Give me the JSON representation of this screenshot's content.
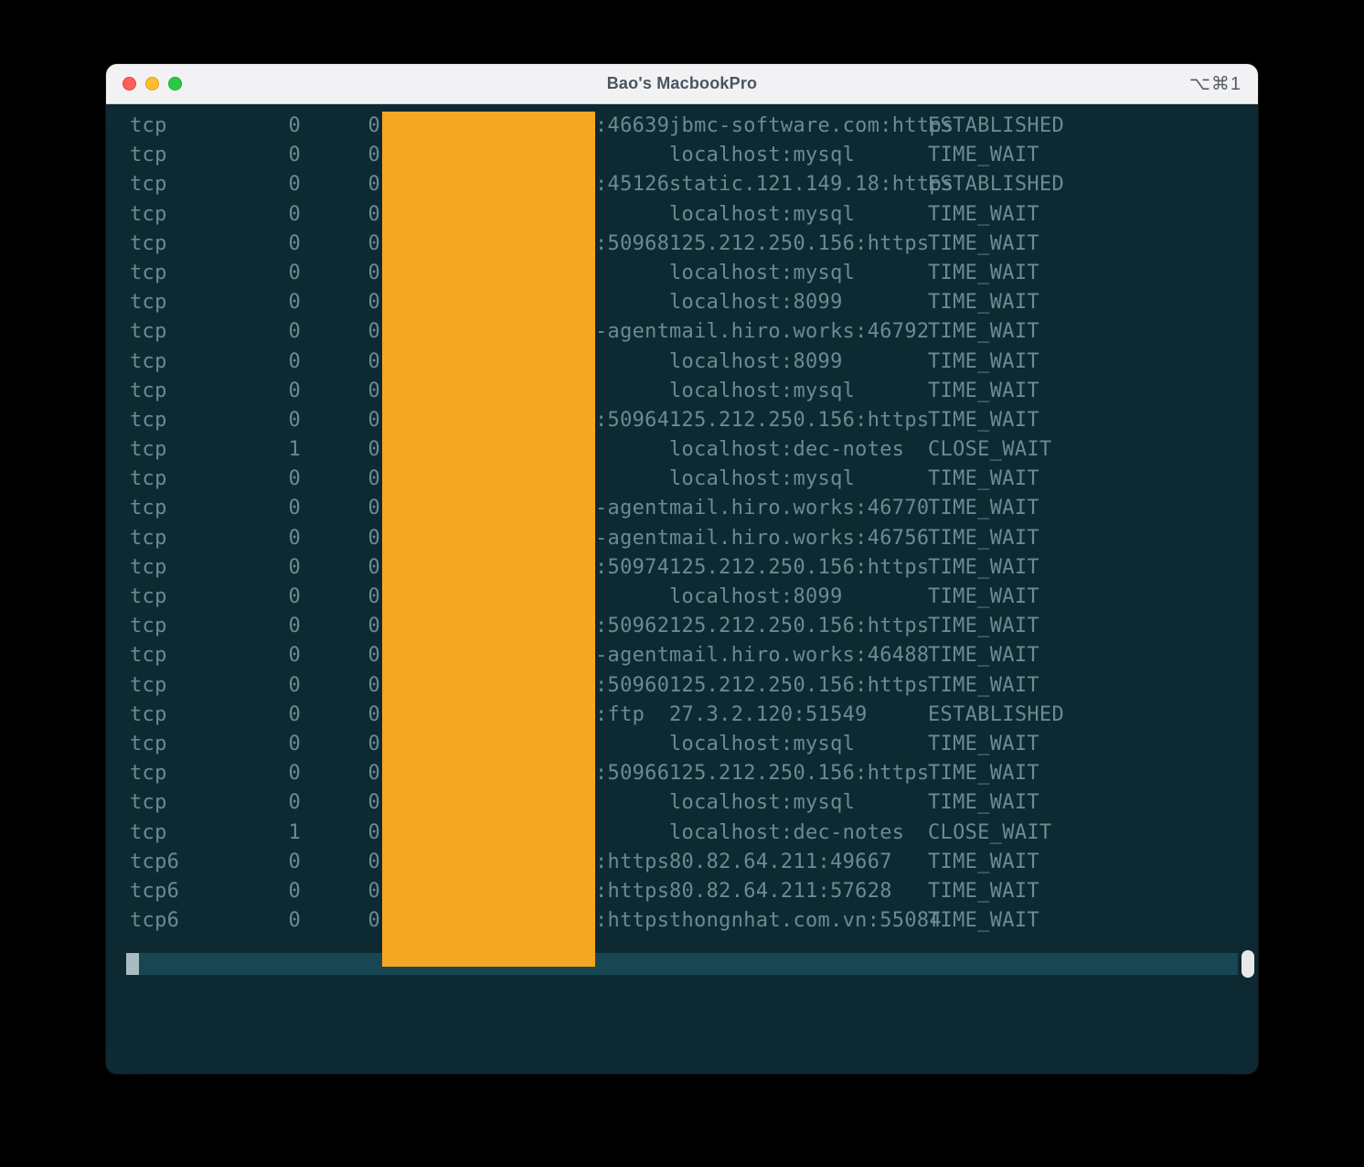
{
  "window": {
    "title": "Bao's MacbookPro",
    "shortcut": "⌥⌘1"
  },
  "colors": {
    "window_bg": "#0d2a32",
    "titlebar_bg": "#f2f2f4",
    "redaction": "#f5a623",
    "text": "#6c8a92",
    "bottom_bar": "#194653",
    "cursor": "#a8bcc2",
    "page_bg": "#000000"
  },
  "columns": [
    "proto",
    "recv_q",
    "send_q",
    "local_suffix",
    "remote",
    "state"
  ],
  "rows": [
    {
      "proto": "tcp",
      "recv_q": "0",
      "send_q": "0",
      "local_suffix": ":46639",
      "remote": "jbmc-software.com:https",
      "state": "ESTABLISHED"
    },
    {
      "proto": "tcp",
      "recv_q": "0",
      "send_q": "0",
      "local_suffix": "",
      "remote": "localhost:mysql",
      "state": "TIME_WAIT"
    },
    {
      "proto": "tcp",
      "recv_q": "0",
      "send_q": "0",
      "local_suffix": ":45126",
      "remote": "static.121.149.18:https",
      "state": "ESTABLISHED"
    },
    {
      "proto": "tcp",
      "recv_q": "0",
      "send_q": "0",
      "local_suffix": "",
      "remote": "localhost:mysql",
      "state": "TIME_WAIT"
    },
    {
      "proto": "tcp",
      "recv_q": "0",
      "send_q": "0",
      "local_suffix": ":50968",
      "remote": "125.212.250.156:https",
      "state": "TIME_WAIT"
    },
    {
      "proto": "tcp",
      "recv_q": "0",
      "send_q": "0",
      "local_suffix": "",
      "remote": "localhost:mysql",
      "state": "TIME_WAIT"
    },
    {
      "proto": "tcp",
      "recv_q": "0",
      "send_q": "0",
      "local_suffix": "",
      "remote": "localhost:8099",
      "state": "TIME_WAIT"
    },
    {
      "proto": "tcp",
      "recv_q": "0",
      "send_q": "0",
      "local_suffix": "-agent",
      "remote": "mail.hiro.works:46792",
      "state": "TIME_WAIT"
    },
    {
      "proto": "tcp",
      "recv_q": "0",
      "send_q": "0",
      "local_suffix": "",
      "remote": "localhost:8099",
      "state": "TIME_WAIT"
    },
    {
      "proto": "tcp",
      "recv_q": "0",
      "send_q": "0",
      "local_suffix": "",
      "remote": "localhost:mysql",
      "state": "TIME_WAIT"
    },
    {
      "proto": "tcp",
      "recv_q": "0",
      "send_q": "0",
      "local_suffix": ":50964",
      "remote": "125.212.250.156:https",
      "state": "TIME_WAIT"
    },
    {
      "proto": "tcp",
      "recv_q": "1",
      "send_q": "0",
      "local_suffix": "",
      "remote": "localhost:dec-notes",
      "state": "CLOSE_WAIT"
    },
    {
      "proto": "tcp",
      "recv_q": "0",
      "send_q": "0",
      "local_suffix": "",
      "remote": "localhost:mysql",
      "state": "TIME_WAIT"
    },
    {
      "proto": "tcp",
      "recv_q": "0",
      "send_q": "0",
      "local_suffix": "-agent",
      "remote": "mail.hiro.works:46770",
      "state": "TIME_WAIT"
    },
    {
      "proto": "tcp",
      "recv_q": "0",
      "send_q": "0",
      "local_suffix": "-agent",
      "remote": "mail.hiro.works:46756",
      "state": "TIME_WAIT"
    },
    {
      "proto": "tcp",
      "recv_q": "0",
      "send_q": "0",
      "local_suffix": ":50974",
      "remote": "125.212.250.156:https",
      "state": "TIME_WAIT"
    },
    {
      "proto": "tcp",
      "recv_q": "0",
      "send_q": "0",
      "local_suffix": "",
      "remote": "localhost:8099",
      "state": "TIME_WAIT"
    },
    {
      "proto": "tcp",
      "recv_q": "0",
      "send_q": "0",
      "local_suffix": ":50962",
      "remote": "125.212.250.156:https",
      "state": "TIME_WAIT"
    },
    {
      "proto": "tcp",
      "recv_q": "0",
      "send_q": "0",
      "local_suffix": "-agent",
      "remote": "mail.hiro.works:46488",
      "state": "TIME_WAIT"
    },
    {
      "proto": "tcp",
      "recv_q": "0",
      "send_q": "0",
      "local_suffix": ":50960",
      "remote": "125.212.250.156:https",
      "state": "TIME_WAIT"
    },
    {
      "proto": "tcp",
      "recv_q": "0",
      "send_q": "0",
      "local_suffix": ":ftp",
      "remote": "27.3.2.120:51549",
      "state": "ESTABLISHED"
    },
    {
      "proto": "tcp",
      "recv_q": "0",
      "send_q": "0",
      "local_suffix": "",
      "remote": "localhost:mysql",
      "state": "TIME_WAIT"
    },
    {
      "proto": "tcp",
      "recv_q": "0",
      "send_q": "0",
      "local_suffix": ":50966",
      "remote": "125.212.250.156:https",
      "state": "TIME_WAIT"
    },
    {
      "proto": "tcp",
      "recv_q": "0",
      "send_q": "0",
      "local_suffix": "",
      "remote": "localhost:mysql",
      "state": "TIME_WAIT"
    },
    {
      "proto": "tcp",
      "recv_q": "1",
      "send_q": "0",
      "local_suffix": "",
      "remote": "localhost:dec-notes",
      "state": "CLOSE_WAIT"
    },
    {
      "proto": "tcp6",
      "recv_q": "0",
      "send_q": "0",
      "local_suffix": ":https",
      "remote": "80.82.64.211:49667",
      "state": "TIME_WAIT"
    },
    {
      "proto": "tcp6",
      "recv_q": "0",
      "send_q": "0",
      "local_suffix": ":https",
      "remote": "80.82.64.211:57628",
      "state": "TIME_WAIT"
    },
    {
      "proto": "tcp6",
      "recv_q": "0",
      "send_q": "0",
      "local_suffix": ":https",
      "remote": "thongnhat.com.vn:55084",
      "state": "TIME_WAIT"
    }
  ]
}
